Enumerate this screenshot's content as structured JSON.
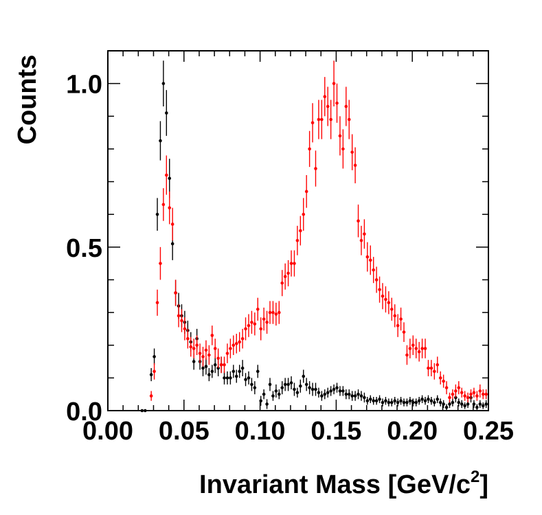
{
  "chart_data": {
    "type": "scatter",
    "xlabel": "Invariant Mass [GeV/c",
    "xlabel_superscript": "2",
    "xlabel_suffix": "]",
    "ylabel": "Counts",
    "xlim": [
      0.0,
      0.25
    ],
    "ylim": [
      0.0,
      1.1
    ],
    "x_tick_labels": [
      "0.00",
      "0.05",
      "0.10",
      "0.15",
      "0.20",
      "0.25"
    ],
    "y_tick_labels": [
      "0.0",
      "0.5",
      "1.0"
    ],
    "grid": false,
    "legend": "none",
    "series": [
      {
        "color": "#000000",
        "points": [
          [
            0.0225,
            0.0,
            0.0
          ],
          [
            0.0245,
            0.0,
            0.0
          ],
          [
            0.0285,
            0.11,
            0.02
          ],
          [
            0.0305,
            0.165,
            0.025
          ],
          [
            0.0325,
            0.6,
            0.05
          ],
          [
            0.0345,
            0.825,
            0.06
          ],
          [
            0.0365,
            1.0,
            0.07
          ],
          [
            0.0385,
            0.91,
            0.07
          ],
          [
            0.0405,
            0.71,
            0.06
          ],
          [
            0.0425,
            0.51,
            0.05
          ],
          [
            0.0445,
            0.36,
            0.04
          ],
          [
            0.0465,
            0.32,
            0.04
          ],
          [
            0.0485,
            0.29,
            0.035
          ],
          [
            0.0505,
            0.27,
            0.035
          ],
          [
            0.0525,
            0.245,
            0.03
          ],
          [
            0.0545,
            0.21,
            0.03
          ],
          [
            0.0565,
            0.15,
            0.025
          ],
          [
            0.0585,
            0.22,
            0.03
          ],
          [
            0.0605,
            0.15,
            0.025
          ],
          [
            0.0625,
            0.13,
            0.025
          ],
          [
            0.0645,
            0.135,
            0.025
          ],
          [
            0.0665,
            0.11,
            0.02
          ],
          [
            0.0685,
            0.12,
            0.02
          ],
          [
            0.0705,
            0.14,
            0.025
          ],
          [
            0.0725,
            0.13,
            0.025
          ],
          [
            0.0745,
            0.14,
            0.025
          ],
          [
            0.0765,
            0.1,
            0.02
          ],
          [
            0.0785,
            0.1,
            0.02
          ],
          [
            0.0805,
            0.1,
            0.02
          ],
          [
            0.0825,
            0.12,
            0.02
          ],
          [
            0.0845,
            0.105,
            0.02
          ],
          [
            0.0865,
            0.12,
            0.02
          ],
          [
            0.0885,
            0.13,
            0.025
          ],
          [
            0.0905,
            0.095,
            0.02
          ],
          [
            0.0925,
            0.1,
            0.02
          ],
          [
            0.0945,
            0.08,
            0.02
          ],
          [
            0.0965,
            0.07,
            0.02
          ],
          [
            0.0985,
            0.12,
            0.02
          ],
          [
            0.1005,
            0.03,
            0.015
          ],
          [
            0.1025,
            0.05,
            0.015
          ],
          [
            0.1045,
            0.02,
            0.015
          ],
          [
            0.1065,
            0.08,
            0.02
          ],
          [
            0.1085,
            0.045,
            0.015
          ],
          [
            0.1105,
            0.06,
            0.02
          ],
          [
            0.1125,
            0.05,
            0.015
          ],
          [
            0.1145,
            0.07,
            0.02
          ],
          [
            0.1165,
            0.08,
            0.02
          ],
          [
            0.1185,
            0.08,
            0.02
          ],
          [
            0.1205,
            0.085,
            0.02
          ],
          [
            0.1225,
            0.065,
            0.02
          ],
          [
            0.1245,
            0.055,
            0.015
          ],
          [
            0.1265,
            0.075,
            0.02
          ],
          [
            0.1285,
            0.105,
            0.02
          ],
          [
            0.1305,
            0.08,
            0.02
          ],
          [
            0.1325,
            0.07,
            0.02
          ],
          [
            0.1345,
            0.065,
            0.02
          ],
          [
            0.1365,
            0.065,
            0.02
          ],
          [
            0.1385,
            0.055,
            0.015
          ],
          [
            0.1405,
            0.045,
            0.015
          ],
          [
            0.1425,
            0.05,
            0.015
          ],
          [
            0.1445,
            0.055,
            0.015
          ],
          [
            0.1465,
            0.06,
            0.015
          ],
          [
            0.1485,
            0.065,
            0.015
          ],
          [
            0.1505,
            0.07,
            0.015
          ],
          [
            0.1525,
            0.06,
            0.015
          ],
          [
            0.1545,
            0.06,
            0.015
          ],
          [
            0.1565,
            0.05,
            0.015
          ],
          [
            0.1585,
            0.05,
            0.015
          ],
          [
            0.1605,
            0.045,
            0.015
          ],
          [
            0.1625,
            0.045,
            0.015
          ],
          [
            0.1645,
            0.05,
            0.015
          ],
          [
            0.1665,
            0.045,
            0.015
          ],
          [
            0.1685,
            0.04,
            0.015
          ],
          [
            0.1705,
            0.03,
            0.012
          ],
          [
            0.1725,
            0.035,
            0.012
          ],
          [
            0.1745,
            0.03,
            0.012
          ],
          [
            0.1765,
            0.03,
            0.012
          ],
          [
            0.1785,
            0.035,
            0.012
          ],
          [
            0.1805,
            0.025,
            0.012
          ],
          [
            0.1825,
            0.03,
            0.012
          ],
          [
            0.1845,
            0.025,
            0.012
          ],
          [
            0.1865,
            0.025,
            0.012
          ],
          [
            0.1885,
            0.03,
            0.012
          ],
          [
            0.1905,
            0.025,
            0.012
          ],
          [
            0.1925,
            0.03,
            0.012
          ],
          [
            0.1945,
            0.025,
            0.012
          ],
          [
            0.1965,
            0.025,
            0.012
          ],
          [
            0.1985,
            0.03,
            0.012
          ],
          [
            0.2005,
            0.025,
            0.012
          ],
          [
            0.2025,
            0.025,
            0.012
          ],
          [
            0.2045,
            0.03,
            0.012
          ],
          [
            0.2065,
            0.035,
            0.012
          ],
          [
            0.2085,
            0.03,
            0.012
          ],
          [
            0.2105,
            0.035,
            0.012
          ],
          [
            0.2125,
            0.03,
            0.012
          ],
          [
            0.2145,
            0.025,
            0.012
          ],
          [
            0.2165,
            0.035,
            0.012
          ],
          [
            0.2185,
            0.025,
            0.012
          ],
          [
            0.2205,
            0.02,
            0.012
          ],
          [
            0.2225,
            0.01,
            0.01
          ],
          [
            0.2245,
            0.02,
            0.012
          ],
          [
            0.2265,
            0.025,
            0.012
          ],
          [
            0.2285,
            0.04,
            0.015
          ],
          [
            0.2305,
            0.025,
            0.012
          ],
          [
            0.2325,
            0.02,
            0.012
          ],
          [
            0.2345,
            0.015,
            0.01
          ],
          [
            0.2365,
            0.02,
            0.012
          ],
          [
            0.2385,
            0.04,
            0.015
          ],
          [
            0.2405,
            0.02,
            0.012
          ],
          [
            0.2425,
            0.01,
            0.01
          ],
          [
            0.2445,
            0.02,
            0.012
          ],
          [
            0.2465,
            0.015,
            0.01
          ],
          [
            0.2485,
            0.02,
            0.012
          ]
        ]
      },
      {
        "color": "#ff0000",
        "points": [
          [
            0.0285,
            0.045,
            0.015
          ],
          [
            0.0305,
            0.12,
            0.025
          ],
          [
            0.0325,
            0.33,
            0.04
          ],
          [
            0.0345,
            0.45,
            0.05
          ],
          [
            0.0365,
            0.63,
            0.05
          ],
          [
            0.0385,
            0.72,
            0.06
          ],
          [
            0.0405,
            0.62,
            0.05
          ],
          [
            0.0425,
            0.57,
            0.05
          ],
          [
            0.0445,
            0.36,
            0.04
          ],
          [
            0.0465,
            0.29,
            0.035
          ],
          [
            0.0485,
            0.275,
            0.035
          ],
          [
            0.0505,
            0.25,
            0.035
          ],
          [
            0.0525,
            0.22,
            0.03
          ],
          [
            0.0545,
            0.195,
            0.03
          ],
          [
            0.0565,
            0.19,
            0.03
          ],
          [
            0.0585,
            0.2,
            0.03
          ],
          [
            0.0605,
            0.175,
            0.03
          ],
          [
            0.0625,
            0.165,
            0.03
          ],
          [
            0.0645,
            0.185,
            0.03
          ],
          [
            0.0665,
            0.17,
            0.03
          ],
          [
            0.0685,
            0.23,
            0.03
          ],
          [
            0.0705,
            0.19,
            0.03
          ],
          [
            0.0725,
            0.16,
            0.03
          ],
          [
            0.0745,
            0.14,
            0.025
          ],
          [
            0.0765,
            0.14,
            0.025
          ],
          [
            0.0785,
            0.175,
            0.03
          ],
          [
            0.0805,
            0.19,
            0.03
          ],
          [
            0.0825,
            0.2,
            0.03
          ],
          [
            0.0845,
            0.205,
            0.03
          ],
          [
            0.0865,
            0.21,
            0.03
          ],
          [
            0.0885,
            0.22,
            0.03
          ],
          [
            0.0905,
            0.25,
            0.035
          ],
          [
            0.0925,
            0.26,
            0.035
          ],
          [
            0.0945,
            0.27,
            0.035
          ],
          [
            0.0965,
            0.265,
            0.035
          ],
          [
            0.0985,
            0.31,
            0.035
          ],
          [
            0.1005,
            0.25,
            0.035
          ],
          [
            0.1025,
            0.28,
            0.035
          ],
          [
            0.1045,
            0.27,
            0.035
          ],
          [
            0.1065,
            0.3,
            0.035
          ],
          [
            0.1085,
            0.3,
            0.035
          ],
          [
            0.1105,
            0.295,
            0.035
          ],
          [
            0.1125,
            0.3,
            0.035
          ],
          [
            0.1145,
            0.39,
            0.04
          ],
          [
            0.1165,
            0.41,
            0.04
          ],
          [
            0.1185,
            0.42,
            0.04
          ],
          [
            0.1205,
            0.45,
            0.04
          ],
          [
            0.1225,
            0.45,
            0.04
          ],
          [
            0.1245,
            0.52,
            0.045
          ],
          [
            0.1265,
            0.55,
            0.045
          ],
          [
            0.1285,
            0.6,
            0.05
          ],
          [
            0.1305,
            0.67,
            0.05
          ],
          [
            0.1325,
            0.8,
            0.055
          ],
          [
            0.1345,
            0.88,
            0.06
          ],
          [
            0.1365,
            0.74,
            0.055
          ],
          [
            0.1385,
            0.89,
            0.06
          ],
          [
            0.1405,
            0.89,
            0.06
          ],
          [
            0.1425,
            0.96,
            0.06
          ],
          [
            0.1445,
            0.93,
            0.06
          ],
          [
            0.1465,
            0.89,
            0.06
          ],
          [
            0.1485,
            1.0,
            0.07
          ],
          [
            0.1505,
            0.94,
            0.06
          ],
          [
            0.1525,
            0.84,
            0.06
          ],
          [
            0.1545,
            0.8,
            0.06
          ],
          [
            0.1565,
            0.93,
            0.06
          ],
          [
            0.1585,
            0.89,
            0.06
          ],
          [
            0.1605,
            0.79,
            0.055
          ],
          [
            0.1625,
            0.75,
            0.055
          ],
          [
            0.1645,
            0.58,
            0.05
          ],
          [
            0.1665,
            0.52,
            0.045
          ],
          [
            0.1685,
            0.54,
            0.045
          ],
          [
            0.1705,
            0.47,
            0.045
          ],
          [
            0.1725,
            0.46,
            0.045
          ],
          [
            0.1745,
            0.43,
            0.04
          ],
          [
            0.1765,
            0.4,
            0.04
          ],
          [
            0.1785,
            0.37,
            0.04
          ],
          [
            0.1805,
            0.35,
            0.04
          ],
          [
            0.1825,
            0.34,
            0.04
          ],
          [
            0.1845,
            0.33,
            0.035
          ],
          [
            0.1865,
            0.31,
            0.035
          ],
          [
            0.1885,
            0.29,
            0.035
          ],
          [
            0.1905,
            0.26,
            0.035
          ],
          [
            0.1925,
            0.28,
            0.035
          ],
          [
            0.1945,
            0.24,
            0.03
          ],
          [
            0.1965,
            0.17,
            0.03
          ],
          [
            0.1985,
            0.19,
            0.03
          ],
          [
            0.2005,
            0.2,
            0.03
          ],
          [
            0.2025,
            0.19,
            0.03
          ],
          [
            0.2045,
            0.18,
            0.03
          ],
          [
            0.2065,
            0.19,
            0.03
          ],
          [
            0.2085,
            0.19,
            0.03
          ],
          [
            0.2105,
            0.13,
            0.025
          ],
          [
            0.2125,
            0.13,
            0.025
          ],
          [
            0.2145,
            0.12,
            0.025
          ],
          [
            0.2165,
            0.14,
            0.025
          ],
          [
            0.2185,
            0.1,
            0.02
          ],
          [
            0.2205,
            0.09,
            0.02
          ],
          [
            0.2225,
            0.07,
            0.02
          ],
          [
            0.2245,
            0.04,
            0.015
          ],
          [
            0.2265,
            0.05,
            0.015
          ],
          [
            0.2285,
            0.06,
            0.02
          ],
          [
            0.2305,
            0.07,
            0.02
          ],
          [
            0.2325,
            0.055,
            0.015
          ],
          [
            0.2345,
            0.045,
            0.015
          ],
          [
            0.2365,
            0.04,
            0.015
          ],
          [
            0.2385,
            0.05,
            0.015
          ],
          [
            0.2405,
            0.055,
            0.015
          ],
          [
            0.2425,
            0.045,
            0.015
          ],
          [
            0.2445,
            0.06,
            0.02
          ],
          [
            0.2465,
            0.05,
            0.015
          ],
          [
            0.2485,
            0.05,
            0.015
          ]
        ]
      }
    ]
  }
}
